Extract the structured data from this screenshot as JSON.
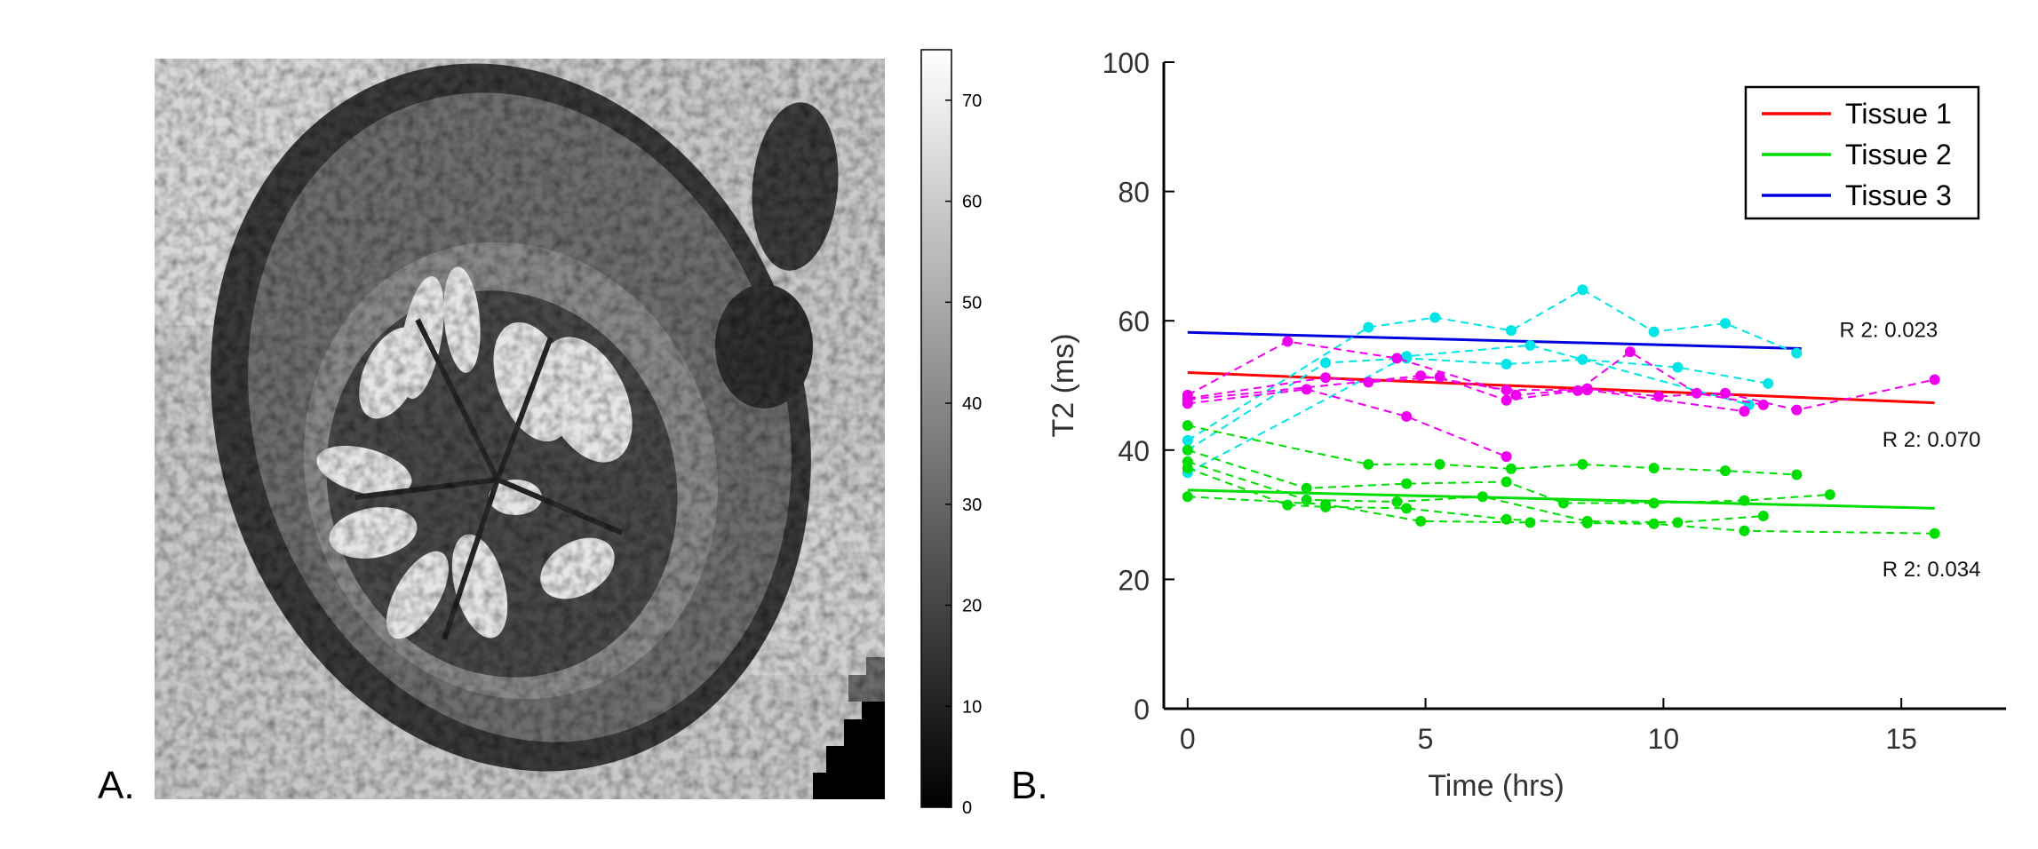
{
  "panel_labels": {
    "a": "A.",
    "b": "B."
  },
  "colorbar": {
    "range": [
      0,
      75
    ],
    "ticks": [
      0,
      10,
      20,
      30,
      40,
      50,
      60,
      70
    ],
    "tick_labels": [
      "0",
      "10",
      "20",
      "30",
      "40",
      "50",
      "60",
      "70"
    ]
  },
  "image_panel": {
    "content": "grayscale T2 map of ovoid tissue with dark rim and bright inner folds"
  },
  "chart_data": {
    "type": "line",
    "title": "",
    "xlabel": "Time (hrs)",
    "ylabel": "T2 (ms)",
    "xlim": [
      -0.5,
      17.2
    ],
    "ylim": [
      0,
      100
    ],
    "xticks": [
      0,
      5,
      10,
      15
    ],
    "yticks": [
      0,
      20,
      40,
      60,
      80,
      100
    ],
    "legend_position": "top-right",
    "legend": [
      {
        "name": "Tissue 1",
        "color": "#ff0000"
      },
      {
        "name": "Tissue 2",
        "color": "#00dd00"
      },
      {
        "name": "Tissue 3",
        "color": "#0000dd"
      }
    ],
    "fits": [
      {
        "name": "Tissue 1",
        "color": "#ff0000",
        "x": [
          0,
          15.7
        ],
        "y": [
          52,
          47.3
        ]
      },
      {
        "name": "Tissue 2",
        "color": "#00dd00",
        "x": [
          0,
          15.7
        ],
        "y": [
          33.8,
          31
        ]
      },
      {
        "name": "Tissue 3",
        "color": "#0000dd",
        "x": [
          0,
          12.9
        ],
        "y": [
          58.2,
          55.7
        ]
      }
    ],
    "annotations": [
      {
        "text": "R 2: 0.023",
        "x": 13.7,
        "y": 57.5
      },
      {
        "text": "R 2: 0.070",
        "x": 14.6,
        "y": 40.5
      },
      {
        "text": "R 2: 0.034",
        "x": 14.6,
        "y": 20.5
      }
    ],
    "groups": [
      {
        "tissue": "Tissue 3",
        "color": "#00e5e5",
        "series": [
          {
            "x": [
              0,
              3.8,
              5.2,
              6.8,
              8.3,
              9.8,
              11.3,
              12.8
            ],
            "y": [
              41.5,
              59,
              60.5,
              58.5,
              64.8,
              58.3,
              59.6,
              55
            ]
          },
          {
            "x": [
              0,
              2.9,
              4.6,
              6.7,
              8.3,
              10.3,
              12.2
            ],
            "y": [
              40,
              53.5,
              54.2,
              53.3,
              54,
              52.8,
              50.3
            ]
          },
          {
            "x": [
              0,
              4.6,
              7.2,
              11.8
            ],
            "y": [
              36.5,
              54.5,
              56.2,
              47
            ]
          }
        ]
      },
      {
        "tissue": "Tissue 1",
        "color": "#ee00ee",
        "series": [
          {
            "x": [
              0,
              2.1,
              4.4,
              6.9,
              8.4,
              9.9,
              11.3,
              12.8,
              15.7
            ],
            "y": [
              48.5,
              56.8,
              54.2,
              48.5,
              49.5,
              48.3,
              48.8,
              46.2,
              50.9
            ]
          },
          {
            "x": [
              0,
              2.9,
              3.8,
              5.3,
              6.7,
              8.2,
              9.3,
              10.7,
              12.1
            ],
            "y": [
              48,
              51.2,
              50.5,
              51.3,
              47.7,
              49.2,
              55.2,
              48.8,
              47
            ]
          },
          {
            "x": [
              0,
              2.5,
              4.6,
              6.7
            ],
            "y": [
              47.2,
              49.4,
              45.2,
              39
            ]
          },
          {
            "x": [
              0,
              4.9,
              6.7,
              8.4,
              11.7
            ],
            "y": [
              47.8,
              51.5,
              49.3,
              49.3,
              46
            ]
          }
        ]
      },
      {
        "tissue": "Tissue 2",
        "color": "#00dd00",
        "series": [
          {
            "x": [
              0,
              3.8,
              5.3,
              6.8,
              8.3,
              9.8,
              11.3,
              12.8
            ],
            "y": [
              43.8,
              37.8,
              37.8,
              37.1,
              37.8,
              37.2,
              36.8,
              36.2
            ]
          },
          {
            "x": [
              0,
              2.5,
              4.6,
              6.7,
              7.9,
              9.8,
              11.7,
              13.5
            ],
            "y": [
              40,
              34.1,
              34.8,
              35.1,
              31.8,
              31.8,
              32.2,
              33.1
            ]
          },
          {
            "x": [
              0,
              2.5,
              4.4,
              6.2,
              8.4,
              10.3,
              12.1
            ],
            "y": [
              38.2,
              32.3,
              32,
              32.8,
              29,
              28.8,
              29.8
            ]
          },
          {
            "x": [
              0,
              2.1,
              2.9,
              4.6,
              6.7,
              8.4,
              9.8,
              11.7,
              15.7
            ],
            "y": [
              37.2,
              31.5,
              31.2,
              31,
              29.3,
              28.7,
              28.6,
              27.5,
              27.1
            ]
          },
          {
            "x": [
              0,
              2.9,
              4.9,
              7.2
            ],
            "y": [
              32.8,
              31.6,
              29,
              28.8
            ]
          }
        ]
      }
    ]
  }
}
